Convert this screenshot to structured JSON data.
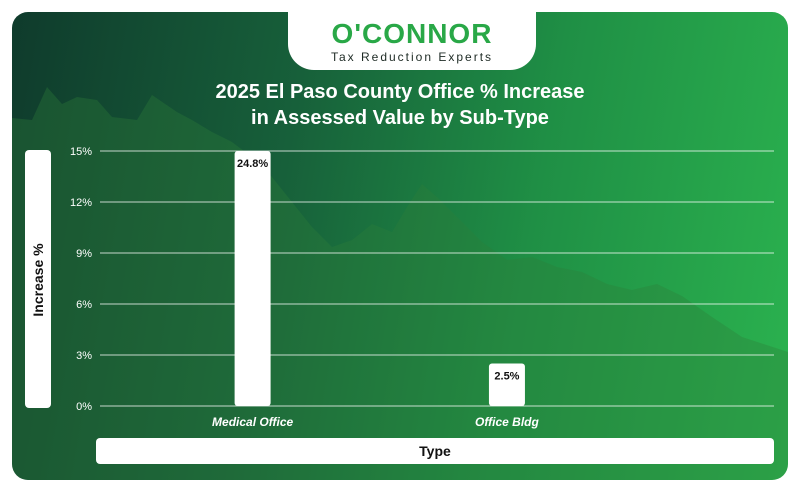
{
  "brand": {
    "name": "O'CONNOR",
    "tagline": "Tax Reduction Experts",
    "colors": {
      "brand_green": "#29a847",
      "panel_dark": "#0f3b2c",
      "panel_light": "#2bb34f"
    }
  },
  "chart_data": {
    "type": "bar",
    "title_lines": [
      "2025 El Paso County Office % Increase",
      "in Assessed Value by Sub-Type"
    ],
    "xlabel": "Type",
    "ylabel": "Increase %",
    "categories": [
      "Medical Office",
      "Office Bldg"
    ],
    "values": [
      24.8,
      2.5
    ],
    "data_labels": [
      "24.8%",
      "2.5%"
    ],
    "yticks": [
      "0%",
      "3%",
      "6%",
      "9%",
      "12%",
      "15%"
    ],
    "ylim": [
      0,
      15
    ],
    "grid": true,
    "bar_color": "#ffffff"
  }
}
